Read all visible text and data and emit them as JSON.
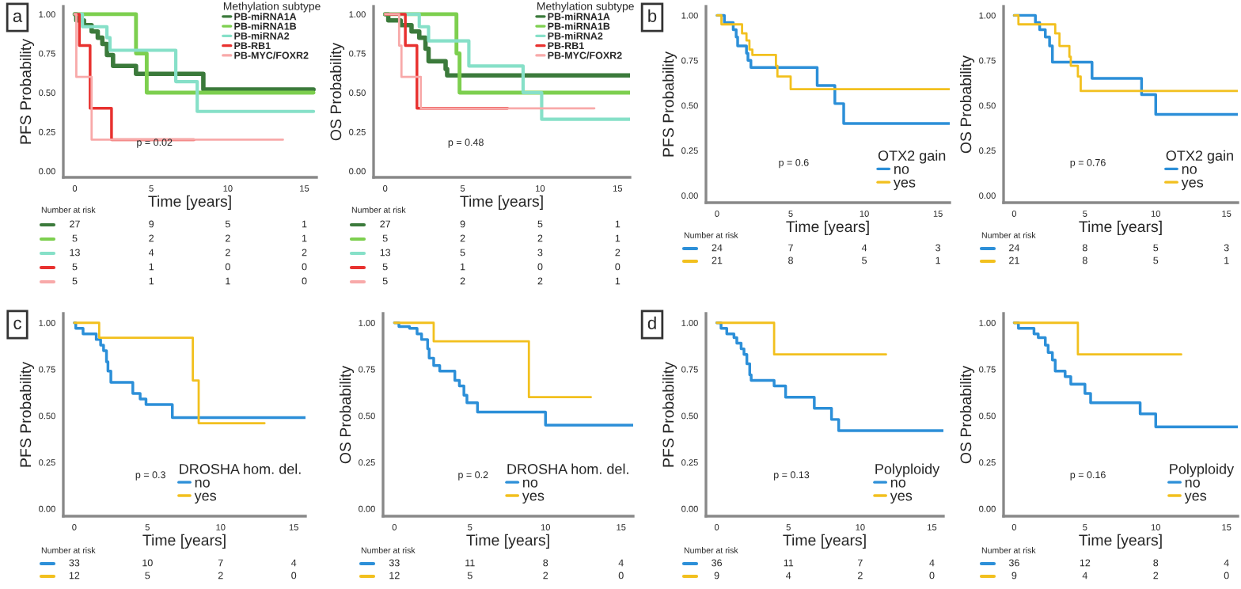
{
  "chart_data": [
    {
      "type": "step",
      "xlabel": "Time [years]",
      "ylabel": "PFS Probability",
      "legend_title": "Methylation subtype",
      "legend": "top right",
      "xlim": [
        -0.75,
        15.8
      ],
      "ylim": [
        -0.04,
        1.05
      ],
      "xticks": [
        0,
        5,
        10,
        15
      ],
      "yticks": [
        {
          "value": 0,
          "label": "0.00"
        },
        {
          "value": 0.25,
          "label": "0.25"
        },
        {
          "value": 0.5,
          "label": "0.50"
        },
        {
          "value": 0.75,
          "label": "0.75"
        },
        {
          "value": 1,
          "label": "1.00"
        }
      ],
      "series": [
        {
          "name": "PB-miRNA1A",
          "color": "#3b7a3b",
          "x": [
            0,
            0.1,
            0.6,
            1.1,
            1.5,
            1.8,
            2.1,
            2.5,
            4.0,
            8.4,
            15.6
          ],
          "values": [
            1,
            0.96,
            0.93,
            0.89,
            0.85,
            0.81,
            0.74,
            0.67,
            0.62,
            0.52,
            0.52
          ]
        },
        {
          "name": "PB-miRNA1B",
          "color": "#7dcf4f",
          "x": [
            0,
            4.0,
            4.7,
            15.6
          ],
          "values": [
            1,
            0.75,
            0.5,
            0.5
          ]
        },
        {
          "name": "PB-miRNA2",
          "color": "#86e0c8",
          "x": [
            0,
            0.5,
            2.1,
            2.3,
            6.6,
            8.0,
            15.6
          ],
          "values": [
            1,
            0.92,
            0.85,
            0.77,
            0.57,
            0.38,
            0.38
          ]
        },
        {
          "name": "PB-RB1",
          "color": "#e8312f",
          "x": [
            0,
            0.3,
            1.0,
            2.4,
            7.8
          ],
          "values": [
            1,
            0.8,
            0.4,
            0.2,
            0.2
          ]
        },
        {
          "name": "PB-MYC/FOXR2",
          "color": "#f8a9a9",
          "x": [
            0,
            0.1,
            1.1,
            13.6
          ],
          "values": [
            1,
            0.6,
            0.2,
            0.2
          ]
        }
      ],
      "annotations": [
        "p = 0.02",
        "Number at risk",
        "27",
        "9",
        "5",
        "1",
        "5",
        "2",
        "2",
        "1",
        "13",
        "4",
        "2",
        "2",
        "5",
        "1",
        "0",
        "0",
        "5",
        "1",
        "1",
        "0",
        "a"
      ]
    },
    {
      "type": "step",
      "xlabel": "Time [years]",
      "ylabel": "OS Probability",
      "legend_title": "Methylation subtype",
      "legend": "top right",
      "xlim": [
        -0.75,
        15.8
      ],
      "ylim": [
        -0.04,
        1.05
      ],
      "xticks": [
        0,
        5,
        10,
        15
      ],
      "yticks": [
        {
          "value": 0,
          "label": "0.00"
        },
        {
          "value": 0.25,
          "label": "0.25"
        },
        {
          "value": 0.5,
          "label": "0.50"
        },
        {
          "value": 0.75,
          "label": "0.75"
        },
        {
          "value": 1,
          "label": "1.00"
        }
      ],
      "series": [
        {
          "name": "PB-miRNA1A",
          "color": "#3b7a3b",
          "x": [
            0,
            0.2,
            1.0,
            1.7,
            2.2,
            2.6,
            2.8,
            3.9,
            4.0,
            15.8
          ],
          "values": [
            1,
            0.96,
            0.93,
            0.89,
            0.85,
            0.78,
            0.7,
            0.65,
            0.61,
            0.61
          ]
        },
        {
          "name": "PB-miRNA1B",
          "color": "#7dcf4f",
          "x": [
            0,
            4.6,
            4.8,
            15.8
          ],
          "values": [
            1,
            0.75,
            0.5,
            0.5
          ]
        },
        {
          "name": "PB-miRNA2",
          "color": "#86e0c8",
          "x": [
            0,
            2.2,
            2.8,
            5.4,
            8.9,
            10.1,
            15.8
          ],
          "values": [
            1,
            0.92,
            0.83,
            0.67,
            0.5,
            0.33,
            0.33
          ]
        },
        {
          "name": "PB-RB1",
          "color": "#e8312f",
          "x": [
            0,
            1.3,
            2.05,
            7.9
          ],
          "values": [
            1,
            0.8,
            0.4,
            0.4
          ]
        },
        {
          "name": "PB-MYC/FOXR2",
          "color": "#f8a9a9",
          "x": [
            0,
            0.9,
            1.05,
            2.3,
            13.5
          ],
          "values": [
            1,
            0.8,
            0.6,
            0.4,
            0.4
          ]
        }
      ],
      "annotations": [
        "p = 0.48",
        "Number at risk",
        "27",
        "9",
        "5",
        "1",
        "5",
        "2",
        "2",
        "1",
        "13",
        "5",
        "3",
        "2",
        "5",
        "1",
        "0",
        "0",
        "5",
        "2",
        "2",
        "1"
      ]
    },
    {
      "type": "step",
      "xlabel": "Time [years]",
      "ylabel": "PFS Probability",
      "legend_title": "OTX2 gain",
      "legend": "bottom right",
      "xlim": [
        -0.75,
        15.8
      ],
      "ylim": [
        -0.04,
        1.05
      ],
      "xticks": [
        0,
        5,
        10,
        15
      ],
      "yticks": [
        {
          "value": 0,
          "label": "0.00"
        },
        {
          "value": 0.25,
          "label": "0.25"
        },
        {
          "value": 0.5,
          "label": "0.50"
        },
        {
          "value": 0.75,
          "label": "0.75"
        },
        {
          "value": 1,
          "label": "1.00"
        }
      ],
      "series": [
        {
          "name": "no",
          "color": "#2c8fd8",
          "x": [
            0,
            0.5,
            1.1,
            1.3,
            1.4,
            2.0,
            2.1,
            2.3,
            6.8,
            8.0,
            8.6,
            15.8
          ],
          "values": [
            1,
            0.96,
            0.92,
            0.88,
            0.83,
            0.79,
            0.75,
            0.71,
            0.61,
            0.51,
            0.4,
            0.4
          ]
        },
        {
          "name": "yes",
          "color": "#f2c01e",
          "x": [
            0,
            0.3,
            1.7,
            2.0,
            2.2,
            2.4,
            4.0,
            4.1,
            5.0,
            15.8
          ],
          "values": [
            1,
            0.95,
            0.9,
            0.86,
            0.81,
            0.78,
            0.72,
            0.66,
            0.59,
            0.59
          ]
        }
      ],
      "annotations": [
        "p = 0.6",
        "Number at risk",
        "24",
        "7",
        "4",
        "3",
        "21",
        "8",
        "5",
        "1",
        "b"
      ]
    },
    {
      "type": "step",
      "xlabel": "Time [years]",
      "ylabel": "OS Probability",
      "legend_title": "OTX2 gain",
      "legend": "bottom right",
      "xlim": [
        -0.75,
        15.8
      ],
      "ylim": [
        -0.04,
        1.05
      ],
      "xticks": [
        0,
        5,
        10,
        15
      ],
      "yticks": [
        {
          "value": 0,
          "label": "0.00"
        },
        {
          "value": 0.25,
          "label": "0.25"
        },
        {
          "value": 0.5,
          "label": "0.50"
        },
        {
          "value": 0.75,
          "label": "0.75"
        },
        {
          "value": 1,
          "label": "1.00"
        }
      ],
      "series": [
        {
          "name": "no",
          "color": "#2c8fd8",
          "x": [
            0,
            1.5,
            1.8,
            2.2,
            2.5,
            2.7,
            5.5,
            9.0,
            10.0,
            15.8
          ],
          "values": [
            1,
            0.96,
            0.92,
            0.88,
            0.83,
            0.74,
            0.65,
            0.56,
            0.45,
            0.45
          ]
        },
        {
          "name": "yes",
          "color": "#f2c01e",
          "x": [
            0,
            0.3,
            2.9,
            3.2,
            3.9,
            4.0,
            4.5,
            4.7,
            15.8
          ],
          "values": [
            1,
            0.95,
            0.9,
            0.83,
            0.77,
            0.72,
            0.66,
            0.58,
            0.58
          ]
        }
      ],
      "annotations": [
        "p = 0.76",
        "Number at risk",
        "24",
        "8",
        "5",
        "3",
        "21",
        "8",
        "5",
        "1"
      ]
    },
    {
      "type": "step",
      "xlabel": "Time [years]",
      "ylabel": "PFS Probability",
      "legend_title": "DROSHA hom. del.",
      "legend": "bottom right",
      "xlim": [
        -0.75,
        15.8
      ],
      "ylim": [
        -0.04,
        1.05
      ],
      "xticks": [
        0,
        5,
        10,
        15
      ],
      "yticks": [
        {
          "value": 0,
          "label": "0.00"
        },
        {
          "value": 0.25,
          "label": "0.25"
        },
        {
          "value": 0.5,
          "label": "0.50"
        },
        {
          "value": 0.75,
          "label": "0.75"
        },
        {
          "value": 1,
          "label": "1.00"
        }
      ],
      "series": [
        {
          "name": "no",
          "color": "#2c8fd8",
          "x": [
            0,
            0.1,
            0.6,
            1.5,
            1.8,
            2.0,
            2.2,
            2.3,
            2.5,
            4.0,
            4.5,
            4.9,
            6.7,
            15.8
          ],
          "values": [
            1,
            0.97,
            0.94,
            0.91,
            0.88,
            0.85,
            0.79,
            0.74,
            0.68,
            0.62,
            0.59,
            0.56,
            0.49,
            0.49
          ]
        },
        {
          "name": "yes",
          "color": "#f2c01e",
          "x": [
            0,
            1.7,
            8.1,
            8.5,
            13.0
          ],
          "values": [
            1,
            0.92,
            0.69,
            0.46,
            0.46
          ]
        }
      ],
      "annotations": [
        "p = 0.3",
        "Number at risk",
        "33",
        "10",
        "7",
        "4",
        "12",
        "5",
        "2",
        "0",
        "c"
      ]
    },
    {
      "type": "step",
      "xlabel": "Time [years]",
      "ylabel": "OS Probability",
      "legend_title": "DROSHA hom. del.",
      "legend": "bottom right",
      "xlim": [
        -0.75,
        15.8
      ],
      "ylim": [
        -0.04,
        1.05
      ],
      "xticks": [
        0,
        5,
        10,
        15
      ],
      "yticks": [
        {
          "value": 0,
          "label": "0.00"
        },
        {
          "value": 0.25,
          "label": "0.25"
        },
        {
          "value": 0.5,
          "label": "0.50"
        },
        {
          "value": 0.75,
          "label": "0.75"
        },
        {
          "value": 1,
          "label": "1.00"
        }
      ],
      "series": [
        {
          "name": "no",
          "color": "#2c8fd8",
          "x": [
            0,
            0.3,
            1.0,
            1.5,
            1.8,
            2.2,
            2.3,
            2.6,
            3.0,
            4.0,
            4.3,
            4.6,
            4.8,
            5.5,
            10.0,
            15.8
          ],
          "values": [
            1,
            0.98,
            0.97,
            0.94,
            0.91,
            0.86,
            0.81,
            0.77,
            0.74,
            0.69,
            0.66,
            0.61,
            0.57,
            0.52,
            0.45,
            0.45
          ]
        },
        {
          "name": "yes",
          "color": "#f2c01e",
          "x": [
            0,
            2.6,
            8.9,
            13.0
          ],
          "values": [
            1,
            0.9,
            0.6,
            0.6
          ]
        }
      ],
      "annotations": [
        "p = 0.2",
        "Number at risk",
        "33",
        "11",
        "8",
        "4",
        "12",
        "5",
        "2",
        "0"
      ]
    },
    {
      "type": "step",
      "xlabel": "Time [years]",
      "ylabel": "PFS Probability",
      "legend_title": "Polyploidy",
      "legend": "bottom right",
      "xlim": [
        -0.75,
        15.8
      ],
      "ylim": [
        -0.04,
        1.05
      ],
      "xticks": [
        0,
        5,
        10,
        15
      ],
      "yticks": [
        {
          "value": 0,
          "label": "0.00"
        },
        {
          "value": 0.25,
          "label": "0.25"
        },
        {
          "value": 0.5,
          "label": "0.50"
        },
        {
          "value": 0.75,
          "label": "0.75"
        },
        {
          "value": 1,
          "label": "1.00"
        }
      ],
      "series": [
        {
          "name": "no",
          "color": "#2c8fd8",
          "x": [
            0,
            0.3,
            0.7,
            1.2,
            1.4,
            1.7,
            1.9,
            2.1,
            2.3,
            2.4,
            4.0,
            4.8,
            6.8,
            8.0,
            8.5,
            15.8
          ],
          "values": [
            1,
            0.97,
            0.94,
            0.92,
            0.89,
            0.86,
            0.83,
            0.78,
            0.72,
            0.69,
            0.66,
            0.6,
            0.54,
            0.48,
            0.42,
            0.42
          ]
        },
        {
          "name": "yes",
          "color": "#f2c01e",
          "x": [
            0,
            4.0,
            11.8
          ],
          "values": [
            1,
            0.83,
            0.83
          ]
        }
      ],
      "annotations": [
        "p = 0.13",
        "Number at risk",
        "36",
        "11",
        "7",
        "4",
        "9",
        "4",
        "2",
        "0",
        "d"
      ]
    },
    {
      "type": "step",
      "xlabel": "Time [years]",
      "ylabel": "OS Probability",
      "legend_title": "Polyploidy",
      "legend": "bottom right",
      "xlim": [
        -0.75,
        15.8
      ],
      "ylim": [
        -0.04,
        1.05
      ],
      "xticks": [
        0,
        5,
        10,
        15
      ],
      "yticks": [
        {
          "value": 0,
          "label": "0.00"
        },
        {
          "value": 0.25,
          "label": "0.25"
        },
        {
          "value": 0.5,
          "label": "0.50"
        },
        {
          "value": 0.75,
          "label": "0.75"
        },
        {
          "value": 1,
          "label": "1.00"
        }
      ],
      "series": [
        {
          "name": "no",
          "color": "#2c8fd8",
          "x": [
            0,
            0.3,
            1.4,
            1.7,
            2.2,
            2.4,
            2.7,
            2.9,
            3.6,
            4.0,
            5.0,
            5.4,
            8.9,
            10.0,
            15.8
          ],
          "values": [
            1,
            0.97,
            0.94,
            0.92,
            0.88,
            0.84,
            0.8,
            0.74,
            0.71,
            0.67,
            0.62,
            0.57,
            0.51,
            0.44,
            0.44
          ]
        },
        {
          "name": "yes",
          "color": "#f2c01e",
          "x": [
            0,
            4.5,
            11.8
          ],
          "values": [
            1,
            0.83,
            0.83
          ]
        }
      ],
      "annotations": [
        "p = 0.16",
        "Number at risk",
        "36",
        "12",
        "8",
        "4",
        "9",
        "4",
        "2",
        "0"
      ]
    }
  ]
}
